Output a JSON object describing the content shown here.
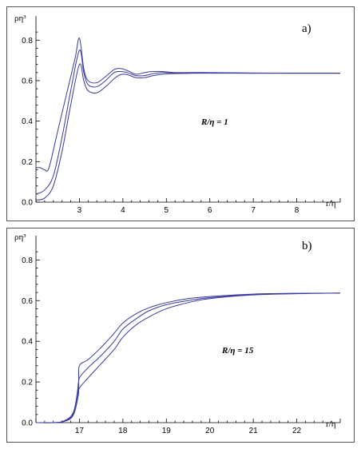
{
  "chart_data": [
    {
      "type": "line",
      "panel_label": "a)",
      "annotation": "R/η = 1",
      "ylabel": "ρη³",
      "xlabel": "r/η",
      "xlim": [
        2.0,
        9.0
      ],
      "ylim": [
        0.0,
        0.88
      ],
      "xticks": [
        3,
        4,
        5,
        6,
        7,
        8
      ],
      "yticks": [
        0.0,
        0.2,
        0.4,
        0.6,
        0.8
      ],
      "ytick_labels": [
        "0.0",
        "0.2",
        "0.4",
        "0.6",
        "0.8"
      ],
      "series": [
        {
          "x": [
            2.0,
            2.1,
            2.2,
            2.3,
            2.5,
            2.7,
            2.9,
            3.0,
            3.1,
            3.2,
            3.4,
            3.6,
            3.8,
            3.95,
            4.1,
            4.3,
            4.5,
            4.7,
            4.9,
            5.2,
            5.5,
            6.0,
            7.0,
            8.0,
            9.0
          ],
          "y": [
            0.17,
            0.17,
            0.16,
            0.17,
            0.35,
            0.53,
            0.71,
            0.81,
            0.66,
            0.6,
            0.59,
            0.62,
            0.655,
            0.66,
            0.65,
            0.632,
            0.64,
            0.645,
            0.645,
            0.64,
            0.64,
            0.64,
            0.638,
            0.637,
            0.637
          ]
        },
        {
          "x": [
            2.0,
            2.2,
            2.4,
            2.6,
            2.8,
            3.0,
            3.1,
            3.2,
            3.4,
            3.6,
            3.8,
            3.95,
            4.1,
            4.3,
            4.5,
            4.7,
            4.9,
            5.2,
            5.5,
            6.0,
            7.0,
            8.0,
            9.0
          ],
          "y": [
            0.04,
            0.06,
            0.13,
            0.32,
            0.55,
            0.75,
            0.64,
            0.58,
            0.57,
            0.6,
            0.64,
            0.645,
            0.64,
            0.625,
            0.625,
            0.635,
            0.64,
            0.638,
            0.638,
            0.638,
            0.637,
            0.637,
            0.637
          ]
        },
        {
          "x": [
            2.0,
            2.2,
            2.4,
            2.6,
            2.8,
            3.0,
            3.1,
            3.2,
            3.4,
            3.6,
            3.8,
            3.95,
            4.1,
            4.3,
            4.5,
            4.7,
            4.9,
            5.2,
            5.5,
            6.0,
            7.0,
            8.0,
            9.0
          ],
          "y": [
            0.01,
            0.02,
            0.08,
            0.25,
            0.48,
            0.68,
            0.6,
            0.55,
            0.54,
            0.57,
            0.61,
            0.63,
            0.63,
            0.615,
            0.615,
            0.625,
            0.632,
            0.635,
            0.636,
            0.637,
            0.637,
            0.637,
            0.637
          ]
        }
      ]
    },
    {
      "type": "line",
      "panel_label": "b)",
      "annotation": "R/η = 15",
      "ylabel": "ρη³",
      "xlabel": "r/η",
      "xlim": [
        16.0,
        23.0
      ],
      "ylim": [
        0.0,
        0.88
      ],
      "xticks": [
        17,
        18,
        19,
        20,
        21,
        22
      ],
      "yticks": [
        0.0,
        0.2,
        0.4,
        0.6,
        0.8
      ],
      "ytick_labels": [
        "0.0",
        "0.2",
        "0.4",
        "0.6",
        "0.8"
      ],
      "series": [
        {
          "x": [
            16.0,
            16.4,
            16.6,
            16.8,
            16.9,
            16.98,
            17.0,
            17.2,
            17.5,
            17.8,
            18.0,
            18.3,
            18.6,
            19.0,
            19.5,
            20.0,
            21.0,
            22.0,
            23.0
          ],
          "y": [
            0.0,
            0.0,
            0.005,
            0.03,
            0.08,
            0.2,
            0.28,
            0.31,
            0.37,
            0.44,
            0.49,
            0.535,
            0.565,
            0.59,
            0.61,
            0.62,
            0.632,
            0.636,
            0.637
          ]
        },
        {
          "x": [
            16.0,
            16.4,
            16.6,
            16.8,
            16.9,
            16.98,
            17.0,
            17.2,
            17.5,
            17.8,
            18.0,
            18.3,
            18.6,
            19.0,
            19.5,
            20.0,
            21.0,
            22.0,
            23.0
          ],
          "y": [
            0.0,
            0.0,
            0.004,
            0.025,
            0.07,
            0.17,
            0.22,
            0.27,
            0.33,
            0.4,
            0.46,
            0.51,
            0.55,
            0.58,
            0.6,
            0.615,
            0.63,
            0.635,
            0.637
          ]
        },
        {
          "x": [
            16.0,
            16.4,
            16.6,
            16.8,
            16.9,
            16.98,
            17.0,
            17.2,
            17.5,
            17.8,
            18.0,
            18.3,
            18.6,
            19.0,
            19.5,
            20.0,
            21.0,
            22.0,
            23.0
          ],
          "y": [
            0.0,
            0.0,
            0.003,
            0.02,
            0.06,
            0.14,
            0.17,
            0.22,
            0.29,
            0.36,
            0.42,
            0.48,
            0.52,
            0.56,
            0.59,
            0.61,
            0.628,
            0.634,
            0.637
          ]
        }
      ]
    }
  ]
}
